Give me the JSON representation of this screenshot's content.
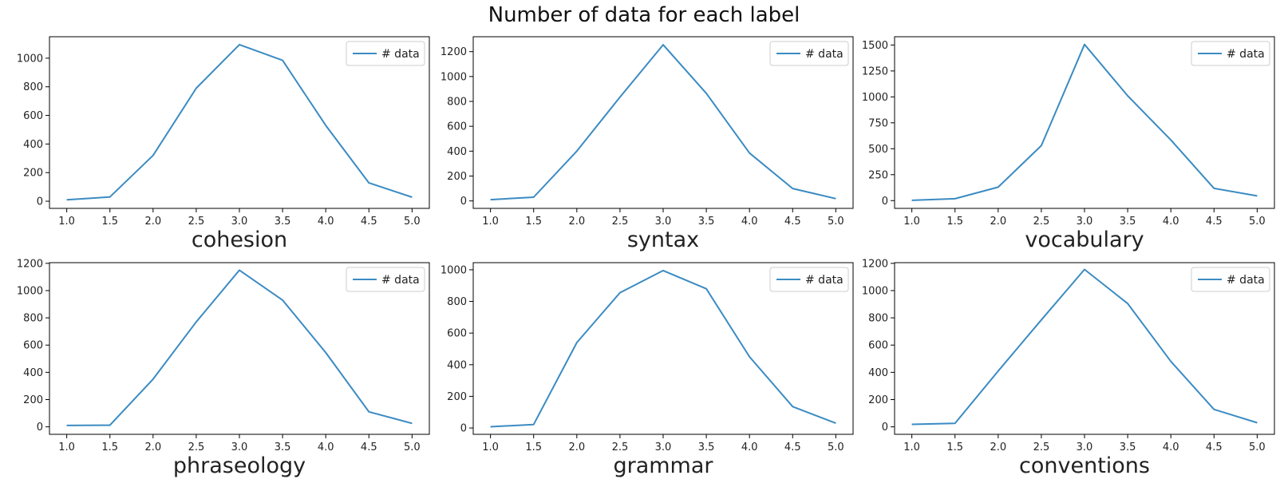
{
  "title": "Number of data for each label",
  "colors": {
    "line": "#3b8bc2",
    "axis": "#000000",
    "legend_border": "#cccccc"
  },
  "chart_data": [
    {
      "type": "line",
      "xlabel": "cohesion",
      "x": [
        1.0,
        1.5,
        2.0,
        2.5,
        3.0,
        3.5,
        4.0,
        4.5,
        5.0
      ],
      "series": [
        {
          "name": "# data",
          "values": [
            10,
            30,
            320,
            790,
            1095,
            985,
            530,
            128,
            28
          ]
        }
      ],
      "xlim": [
        0.8,
        5.2
      ],
      "ylim": [
        -50,
        1150
      ],
      "xticks": [
        "1.0",
        "1.5",
        "2.0",
        "2.5",
        "3.0",
        "3.5",
        "4.0",
        "4.5",
        "5.0"
      ],
      "yticks": [
        0,
        200,
        400,
        600,
        800,
        1000
      ],
      "grid": false,
      "legend": "top-right"
    },
    {
      "type": "line",
      "xlabel": "syntax",
      "x": [
        1.0,
        1.5,
        2.0,
        2.5,
        3.0,
        3.5,
        4.0,
        4.5,
        5.0
      ],
      "series": [
        {
          "name": "# data",
          "values": [
            10,
            30,
            400,
            835,
            1255,
            865,
            385,
            100,
            18
          ]
        }
      ],
      "xlim": [
        0.8,
        5.2
      ],
      "ylim": [
        -60,
        1320
      ],
      "xticks": [
        "1.0",
        "1.5",
        "2.0",
        "2.5",
        "3.0",
        "3.5",
        "4.0",
        "4.5",
        "5.0"
      ],
      "yticks": [
        0,
        200,
        400,
        600,
        800,
        1000,
        1200
      ],
      "grid": false,
      "legend": "top-right"
    },
    {
      "type": "line",
      "xlabel": "vocabulary",
      "x": [
        1.0,
        1.5,
        2.0,
        2.5,
        3.0,
        3.5,
        4.0,
        4.5,
        5.0
      ],
      "series": [
        {
          "name": "# data",
          "values": [
            3,
            18,
            130,
            530,
            1505,
            1010,
            585,
            118,
            45
          ]
        }
      ],
      "xlim": [
        0.8,
        5.2
      ],
      "ylim": [
        -75,
        1580
      ],
      "xticks": [
        "1.0",
        "1.5",
        "2.0",
        "2.5",
        "3.0",
        "3.5",
        "4.0",
        "4.5",
        "5.0"
      ],
      "yticks": [
        0,
        250,
        500,
        750,
        1000,
        1250,
        1500
      ],
      "grid": false,
      "legend": "top-right"
    },
    {
      "type": "line",
      "xlabel": "phraseology",
      "x": [
        1.0,
        1.5,
        2.0,
        2.5,
        3.0,
        3.5,
        4.0,
        4.5,
        5.0
      ],
      "series": [
        {
          "name": "# data",
          "values": [
            10,
            12,
            350,
            770,
            1150,
            930,
            545,
            110,
            25
          ]
        }
      ],
      "xlim": [
        0.8,
        5.2
      ],
      "ylim": [
        -55,
        1205
      ],
      "xticks": [
        "1.0",
        "1.5",
        "2.0",
        "2.5",
        "3.0",
        "3.5",
        "4.0",
        "4.5",
        "5.0"
      ],
      "yticks": [
        0,
        200,
        400,
        600,
        800,
        1000,
        1200
      ],
      "grid": false,
      "legend": "top-right"
    },
    {
      "type": "line",
      "xlabel": "grammar",
      "x": [
        1.0,
        1.5,
        2.0,
        2.5,
        3.0,
        3.5,
        4.0,
        4.5,
        5.0
      ],
      "series": [
        {
          "name": "# data",
          "values": [
            8,
            22,
            540,
            855,
            995,
            880,
            450,
            135,
            30
          ]
        }
      ],
      "xlim": [
        0.8,
        5.2
      ],
      "ylim": [
        -40,
        1045
      ],
      "xticks": [
        "1.0",
        "1.5",
        "2.0",
        "2.5",
        "3.0",
        "3.5",
        "4.0",
        "4.5",
        "5.0"
      ],
      "yticks": [
        0,
        200,
        400,
        600,
        800,
        1000
      ],
      "grid": false,
      "legend": "top-right"
    },
    {
      "type": "line",
      "xlabel": "conventions",
      "x": [
        1.0,
        1.5,
        2.0,
        2.5,
        3.0,
        3.5,
        4.0,
        4.5,
        5.0
      ],
      "series": [
        {
          "name": "# data",
          "values": [
            18,
            25,
            410,
            785,
            1155,
            905,
            480,
            128,
            30
          ]
        }
      ],
      "xlim": [
        0.8,
        5.2
      ],
      "ylim": [
        -55,
        1205
      ],
      "xticks": [
        "1.0",
        "1.5",
        "2.0",
        "2.5",
        "3.0",
        "3.5",
        "4.0",
        "4.5",
        "5.0"
      ],
      "yticks": [
        0,
        200,
        400,
        600,
        800,
        1000,
        1200
      ],
      "grid": false,
      "legend": "top-right"
    }
  ]
}
